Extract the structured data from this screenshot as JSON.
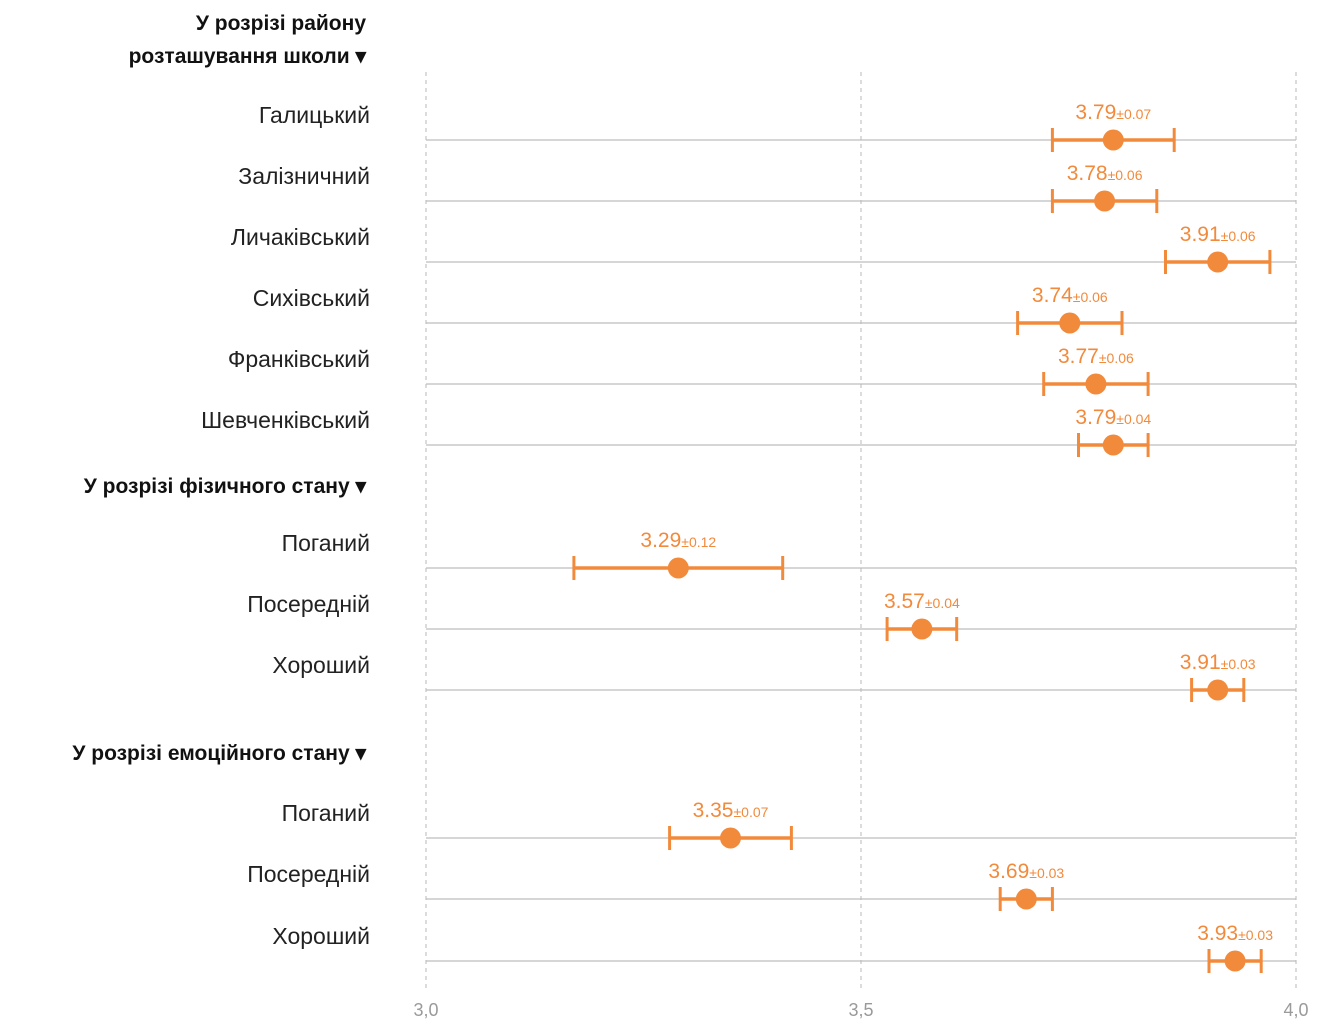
{
  "colors": {
    "accent": "#f28a3c",
    "row_line": "#bdbdbd",
    "grid": "#c4c4c4",
    "text": "#222222",
    "tick": "#9a9a9a"
  },
  "chart_data": {
    "type": "scatter",
    "subtype": "dot-plot-with-error-bars",
    "xlim": [
      3.0,
      4.0
    ],
    "x_ticks": [
      {
        "value": 3.0,
        "label": "3,0"
      },
      {
        "value": 3.5,
        "label": "3,5"
      },
      {
        "value": 4.0,
        "label": "4,0"
      }
    ],
    "grid": "vertical dashed at ticks",
    "groups": [
      {
        "title_lines": [
          "У розрізі району",
          "розташування школи ▾"
        ],
        "rows": [
          {
            "label": "Галицький",
            "value": 3.79,
            "value_label": "3.79",
            "err": 0.07,
            "err_label": "±0.07"
          },
          {
            "label": "Залізничний",
            "value": 3.78,
            "value_label": "3.78",
            "err": 0.06,
            "err_label": "±0.06"
          },
          {
            "label": "Личаківський",
            "value": 3.91,
            "value_label": "3.91",
            "err": 0.06,
            "err_label": "±0.06"
          },
          {
            "label": "Сихівський",
            "value": 3.74,
            "value_label": "3.74",
            "err": 0.06,
            "err_label": "±0.06"
          },
          {
            "label": "Франківський",
            "value": 3.77,
            "value_label": "3.77",
            "err": 0.06,
            "err_label": "±0.06"
          },
          {
            "label": "Шевченківський",
            "value": 3.79,
            "value_label": "3.79",
            "err": 0.04,
            "err_label": "±0.04"
          }
        ]
      },
      {
        "title_lines": [
          "У розрізі фізичного стану ▾"
        ],
        "rows": [
          {
            "label": "Поганий",
            "value": 3.29,
            "value_label": "3.29",
            "err": 0.12,
            "err_label": "±0.12"
          },
          {
            "label": "Посередній",
            "value": 3.57,
            "value_label": "3.57",
            "err": 0.04,
            "err_label": "±0.04"
          },
          {
            "label": "Хороший",
            "value": 3.91,
            "value_label": "3.91",
            "err": 0.03,
            "err_label": "±0.03"
          }
        ]
      },
      {
        "title_lines": [
          "У розрізі емоційного стану ▾"
        ],
        "rows": [
          {
            "label": "Поганий",
            "value": 3.35,
            "value_label": "3.35",
            "err": 0.07,
            "err_label": "±0.07"
          },
          {
            "label": "Посередній",
            "value": 3.69,
            "value_label": "3.69",
            "err": 0.03,
            "err_label": "±0.03"
          },
          {
            "label": "Хороший",
            "value": 3.93,
            "value_label": "3.93",
            "err": 0.03,
            "err_label": "±0.03"
          }
        ]
      }
    ]
  }
}
